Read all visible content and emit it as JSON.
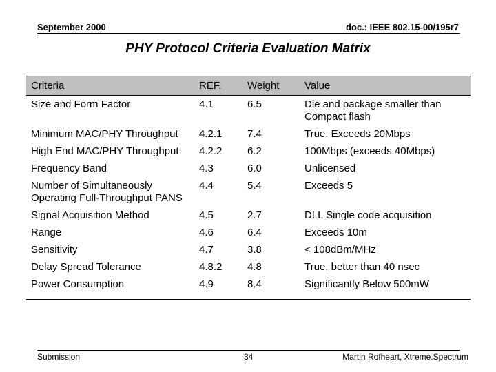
{
  "header": {
    "date": "September 2000",
    "doc_id": "doc.: IEEE 802.15-00/195r7"
  },
  "title": "PHY Protocol Criteria Evaluation Matrix",
  "table": {
    "columns": [
      "Criteria",
      "REF.",
      "Weight",
      "Value"
    ],
    "rows": [
      {
        "criteria": "Size and Form Factor",
        "ref": "4.1",
        "weight": "6.5",
        "value": "Die and package smaller than Compact flash"
      },
      {
        "criteria": "Minimum MAC/PHY Throughput",
        "ref": "4.2.1",
        "weight": "7.4",
        "value": "True. Exceeds 20Mbps"
      },
      {
        "criteria": "High End MAC/PHY Throughput",
        "ref": "4.2.2",
        "weight": "6.2",
        "value": "100Mbps (exceeds 40Mbps)"
      },
      {
        "criteria": "Frequency Band",
        "ref": "4.3",
        "weight": "6.0",
        "value": "Unlicensed"
      },
      {
        "criteria": "Number of Simultaneously Operating Full-Throughput PANS",
        "ref": "4.4",
        "weight": "5.4",
        "value": "Exceeds 5"
      },
      {
        "criteria": "Signal Acquisition Method",
        "ref": "4.5",
        "weight": "2.7",
        "value": "DLL Single code acquisition"
      },
      {
        "criteria": "Range",
        "ref": "4.6",
        "weight": "6.4",
        "value": "Exceeds 10m"
      },
      {
        "criteria": "Sensitivity",
        "ref": "4.7",
        "weight": "3.8",
        "value": "< 108dBm/MHz"
      },
      {
        "criteria": "Delay Spread Tolerance",
        "ref": "4.8.2",
        "weight": "4.8",
        "value": "True, better than 40 nsec"
      },
      {
        "criteria": "Power Consumption",
        "ref": "4.9",
        "weight": "8.4",
        "value": "Significantly Below 500mW"
      }
    ]
  },
  "footer": {
    "left": "Submission",
    "page": "34",
    "author": "Martin Rofheart, Xtreme.Spectrum"
  }
}
